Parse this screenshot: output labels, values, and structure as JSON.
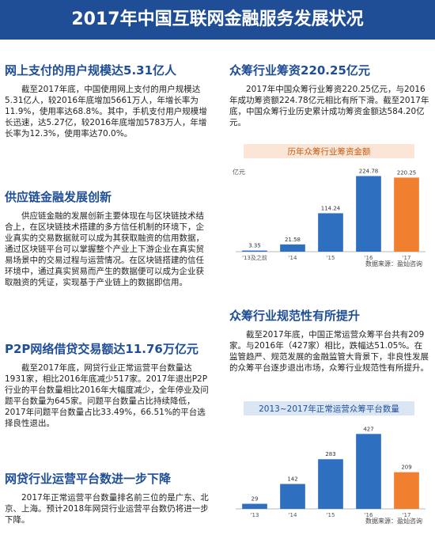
{
  "header": {
    "title": "2017年中国互联网金融服务发展状况"
  },
  "left_sections": [
    {
      "heading": "网上支付的用户规模达5.31亿人",
      "text": "截至2017年底，中国使用网上支付的用户规模达5.31亿人，较2016年底增加5661万人，年增长率为11.9%，使用率达68.8%。其中，手机支付用户规模增长迅速，达5.27亿，较2016年底增加5783万人，年增长率为12.3%，使用率达70.0%。"
    },
    {
      "heading": "供应链金融发展创新",
      "text": "供应链金融的发展创新主要体现在与区块链技术结合上，在区块链技术搭建的多方信任机制的环境下，企业真实的交易数据就可以成为其获取融资的信用数据，通过区块链平台可以掌握整个产业上下游企业在真实贸易场景中的交易过程与运营情况。在区块链搭建的信任环境中，通过真实贸易而产生的数据便可以成为企业获取融资的凭证，实现基于产业链上的数据即信用。"
    },
    {
      "heading": "P2P网络借贷交易额达11.76万亿元",
      "text": "截至2017年底，网贷行业正常运营平台数量达1931家，相比2016年底减少517家。2017年退出P2P行业的平台数量相比2016年大幅度减少，全年停业及问题平台数量为645家。问题平台数量占比持续降低，2017年问题平台数量占比33.49%，66.51%的平台选择良性退出。"
    },
    {
      "heading": "网贷行业运营平台数进一步下降",
      "text": "2017年正常运营平台数量排名前三位的是广东、北京、上海。预计2018年网贷行业运营平台数仍将进一步下降。"
    }
  ],
  "right_sections": [
    {
      "heading": "众筹行业筹资220.25亿元",
      "text": "2017年中国众筹行业筹资220.25亿元，与2016年成功筹资额224.78亿元相比有所下滑。截至2017年底，中国众筹行业历史累计成功筹资金额达584.20亿元。"
    },
    {
      "heading": "众筹行业规范性有所提升",
      "text": "截至2017年底，中国正常运营众筹平台共有209家。与2016年（427家）相比，跌幅达51.05%。在监管趋严、规范发展的金融监管大背景下，非良性发展的众筹平台逐步退出市场，众筹行业规范性有所提升。"
    }
  ],
  "chart_data": [
    {
      "type": "bar",
      "title": "历年众筹行业筹资金额",
      "unit": "亿元",
      "categories": [
        "'13及之前",
        "'14",
        "'15",
        "'16",
        "'17"
      ],
      "values": [
        3.35,
        21.58,
        114.24,
        224.78,
        220.25
      ],
      "colors": [
        "#2f6fc0",
        "#2f6fc0",
        "#2f6fc0",
        "#2f6fc0",
        "#f07f2f"
      ],
      "ylim": [
        0,
        240
      ],
      "source": "数据来源：盈灿咨询"
    },
    {
      "type": "bar",
      "title": "2013~2017年正常运营众筹平台数量",
      "categories": [
        "'13",
        "'14",
        "'15",
        "'16",
        "'17"
      ],
      "values": [
        29,
        142,
        283,
        427,
        209
      ],
      "colors": [
        "#2f6fc0",
        "#2f6fc0",
        "#2f6fc0",
        "#2f6fc0",
        "#f07f2f"
      ],
      "ylim": [
        0,
        460
      ],
      "source": "数据来源：盈灿咨询"
    }
  ]
}
